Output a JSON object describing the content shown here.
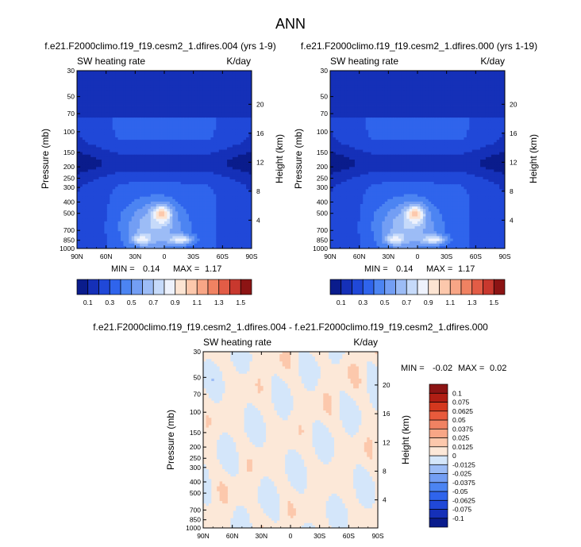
{
  "main_title": "ANN",
  "chart_data": [
    {
      "type": "heatmap",
      "title": "f.e21.F2000climo.f19_f19.cesm2_1.dfires.004 (yrs 1-9)",
      "left_label": "SW heating rate",
      "right_label": "K/day",
      "ylabel": "Pressure (mb)",
      "ylabel_right": "Height (km)",
      "x_ticks": [
        "90N",
        "60N",
        "30N",
        "0",
        "30S",
        "60S",
        "90S"
      ],
      "x_values": [
        90,
        60,
        30,
        0,
        -30,
        -60,
        -90
      ],
      "y_ticks": [
        "30",
        "50",
        "70",
        "100",
        "150",
        "200",
        "250",
        "300",
        "400",
        "500",
        "700",
        "850",
        "1000"
      ],
      "y_values": [
        30,
        50,
        70,
        100,
        150,
        200,
        250,
        300,
        400,
        500,
        700,
        850,
        1000
      ],
      "y_right_ticks": [
        "20",
        "16",
        "12",
        "8",
        "4"
      ],
      "y_right_values": [
        20,
        16,
        12,
        8,
        4
      ],
      "stats": {
        "min_label": "MIN =",
        "min": "0.14",
        "max_label": "MAX =",
        "max": "1.17"
      },
      "colorbar": {
        "levels": [
          0.1,
          0.2,
          0.3,
          0.4,
          0.5,
          0.6,
          0.7,
          0.8,
          0.9,
          1.0,
          1.1,
          1.2,
          1.3,
          1.4,
          1.5
        ],
        "labels": [
          "0.1",
          "0.3",
          "0.5",
          "0.7",
          "0.9",
          "1.1",
          "1.3",
          "1.5"
        ],
        "colors": [
          "#0a1c8c",
          "#1530b8",
          "#2048d8",
          "#2f64ec",
          "#4c84f2",
          "#739ef4",
          "#9cbcf6",
          "#c6dafa",
          "#eef2fc",
          "#fce4d2",
          "#fcc8ac",
          "#f8a686",
          "#f08262",
          "#e25c46",
          "#c8382e",
          "#8c1414"
        ]
      }
    },
    {
      "type": "heatmap",
      "title": "f.e21.F2000climo.f19_f19.cesm2_1.dfires.000 (yrs 1-19)",
      "left_label": "SW heating rate",
      "right_label": "K/day",
      "ylabel": "Pressure (mb)",
      "ylabel_right": "Height (km)",
      "x_ticks": [
        "90N",
        "60N",
        "30N",
        "0",
        "30S",
        "60S",
        "90S"
      ],
      "x_values": [
        90,
        60,
        30,
        0,
        -30,
        -60,
        -90
      ],
      "y_ticks": [
        "30",
        "50",
        "70",
        "100",
        "150",
        "200",
        "250",
        "300",
        "400",
        "500",
        "700",
        "850",
        "1000"
      ],
      "y_values": [
        30,
        50,
        70,
        100,
        150,
        200,
        250,
        300,
        400,
        500,
        700,
        850,
        1000
      ],
      "y_right_ticks": [
        "20",
        "16",
        "12",
        "8",
        "4"
      ],
      "y_right_values": [
        20,
        16,
        12,
        8,
        4
      ],
      "stats": {
        "min_label": "MIN =",
        "min": "0.14",
        "max_label": "MAX =",
        "max": "1.17"
      },
      "colorbar": {
        "levels": [
          0.1,
          0.2,
          0.3,
          0.4,
          0.5,
          0.6,
          0.7,
          0.8,
          0.9,
          1.0,
          1.1,
          1.2,
          1.3,
          1.4,
          1.5
        ],
        "labels": [
          "0.1",
          "0.3",
          "0.5",
          "0.7",
          "0.9",
          "1.1",
          "1.3",
          "1.5"
        ],
        "colors": [
          "#0a1c8c",
          "#1530b8",
          "#2048d8",
          "#2f64ec",
          "#4c84f2",
          "#739ef4",
          "#9cbcf6",
          "#c6dafa",
          "#eef2fc",
          "#fce4d2",
          "#fcc8ac",
          "#f8a686",
          "#f08262",
          "#e25c46",
          "#c8382e",
          "#8c1414"
        ]
      }
    },
    {
      "type": "heatmap",
      "title": "f.e21.F2000climo.f19_f19.cesm2_1.dfires.004 - f.e21.F2000climo.f19_f19.cesm2_1.dfires.000",
      "left_label": "SW heating rate",
      "right_label": "K/day",
      "ylabel": "Pressure (mb)",
      "ylabel_right": "Height (km)",
      "x_ticks": [
        "90N",
        "60N",
        "30N",
        "0",
        "30S",
        "60S",
        "90S"
      ],
      "x_values": [
        90,
        60,
        30,
        0,
        -30,
        -60,
        -90
      ],
      "y_ticks": [
        "30",
        "50",
        "70",
        "100",
        "150",
        "200",
        "250",
        "300",
        "400",
        "500",
        "700",
        "850",
        "1000"
      ],
      "y_values": [
        30,
        50,
        70,
        100,
        150,
        200,
        250,
        300,
        400,
        500,
        700,
        850,
        1000
      ],
      "y_right_ticks": [
        "20",
        "16",
        "12",
        "8",
        "4"
      ],
      "y_right_values": [
        20,
        16,
        12,
        8,
        4
      ],
      "stats": {
        "min_label": "MIN =",
        "min": "-0.02",
        "max_label": "MAX =",
        "max": "0.02"
      },
      "colorbar": {
        "levels": [
          -0.1,
          -0.075,
          -0.0625,
          -0.05,
          -0.0375,
          -0.025,
          -0.0125,
          0,
          0.0125,
          0.025,
          0.0375,
          0.05,
          0.0625,
          0.075,
          0.1
        ],
        "labels": [
          "-0.1",
          "-0.075",
          "-0.0625",
          "-0.05",
          "-0.0375",
          "-0.025",
          "-0.0125",
          "0",
          "0.0125",
          "0.025",
          "0.0375",
          "0.05",
          "0.0625",
          "0.075",
          "0.1"
        ],
        "colors": [
          "#0a1c8c",
          "#1530b8",
          "#2048d8",
          "#2f64ec",
          "#4c84f2",
          "#739ef4",
          "#9cbcf6",
          "#d4e6fa",
          "#fce8d8",
          "#fcc8ac",
          "#f8a686",
          "#f08262",
          "#e85a3c",
          "#d4381e",
          "#b01e14",
          "#8c1414"
        ]
      }
    }
  ]
}
